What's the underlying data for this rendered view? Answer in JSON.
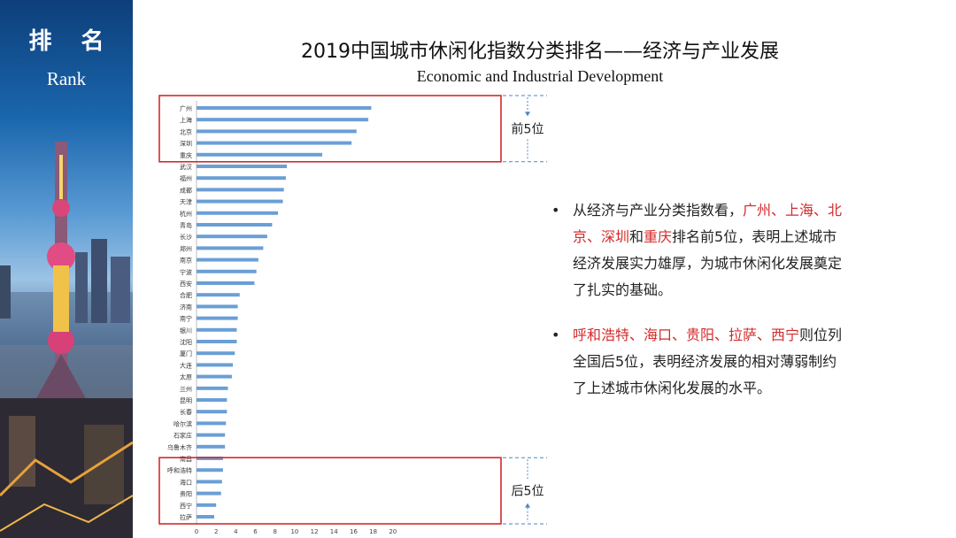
{
  "banner": {
    "title_cn": "排 名",
    "title_en": "Rank"
  },
  "header": {
    "title": "2019中国城市休闲化指数分类排名——经济与产业发展",
    "subtitle": "Economic and Industrial Development"
  },
  "chart_data": {
    "type": "bar",
    "orientation": "horizontal",
    "categories": [
      "广州",
      "上海",
      "北京",
      "深圳",
      "重庆",
      "武汉",
      "福州",
      "成都",
      "天津",
      "杭州",
      "青岛",
      "长沙",
      "郑州",
      "南京",
      "宁波",
      "西安",
      "合肥",
      "济南",
      "南宁",
      "银川",
      "沈阳",
      "厦门",
      "大连",
      "太原",
      "兰州",
      "昆明",
      "长春",
      "哈尔滨",
      "石家庄",
      "乌鲁木齐",
      "南昌",
      "呼和浩特",
      "海口",
      "贵阳",
      "西宁",
      "拉萨"
    ],
    "values": [
      17.8,
      17.5,
      16.3,
      15.8,
      12.8,
      9.2,
      9.1,
      8.9,
      8.8,
      8.3,
      7.7,
      7.2,
      6.8,
      6.3,
      6.1,
      5.9,
      4.4,
      4.2,
      4.2,
      4.1,
      4.1,
      3.9,
      3.7,
      3.6,
      3.2,
      3.1,
      3.1,
      3.0,
      2.9,
      2.9,
      2.7,
      2.7,
      2.6,
      2.5,
      2.0,
      1.8
    ],
    "xlim": [
      0,
      22
    ],
    "x_ticks": [
      "0",
      "2",
      "4",
      "6",
      "8",
      "10",
      "12",
      "14",
      "16",
      "18",
      "20"
    ],
    "bar_color": "#6a9fd6",
    "groups": [
      {
        "label": "前5位",
        "from": 0,
        "to": 4
      },
      {
        "label": "后5位",
        "from": 31,
        "to": 35
      }
    ]
  },
  "notes": [
    {
      "bullet": "•",
      "segments": [
        {
          "text": "从经济与产业分类指数看，",
          "highlight": false
        },
        {
          "text": "广州、上海、北京、深圳",
          "highlight": true
        },
        {
          "text": "和",
          "highlight": false
        },
        {
          "text": "重庆",
          "highlight": true
        },
        {
          "text": "排名前5位，表明上述城市经济发展实力雄厚，为城市休闲化发展奠定了扎实的基础。",
          "highlight": false
        }
      ]
    },
    {
      "bullet": "•",
      "segments": [
        {
          "text": "呼和浩特、海口、贵阳、拉萨、西宁",
          "highlight": true
        },
        {
          "text": "则位列全国后5位，表明经济发展的相对薄弱制约了上述城市休闲化发展的水平。",
          "highlight": false
        }
      ]
    }
  ],
  "colors": {
    "highlight": "#d42a2a",
    "frame": "#d42a2a",
    "dashed": "#4a86c8"
  }
}
